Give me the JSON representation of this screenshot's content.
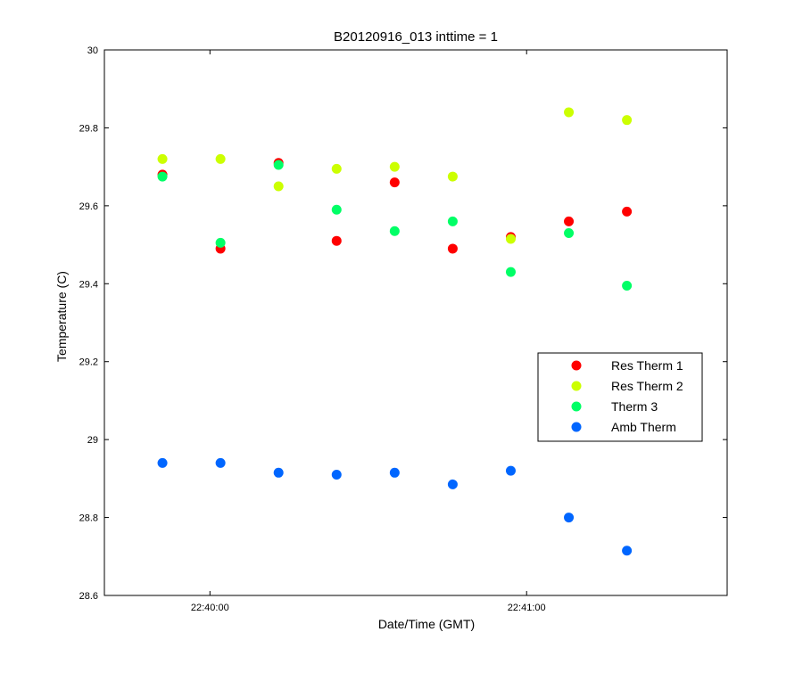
{
  "chart_data": {
    "type": "scatter",
    "title": "B20120916_013 inttime = 1",
    "xlabel": "Date/Time (GMT)",
    "ylabel": "Temperature (C)",
    "x_unit": "time (GMT)",
    "xlim": [
      "22:39:40",
      "22:41:38"
    ],
    "ylim": [
      28.6,
      30
    ],
    "yticks": [
      28.6,
      28.8,
      29,
      29.2,
      29.4,
      29.6,
      29.8,
      30
    ],
    "ytick_labels": [
      "28.6",
      "28.8",
      "29",
      "29.2",
      "29.4",
      "29.6",
      "29.8",
      "30"
    ],
    "xticks": [
      "22:40:00",
      "22:41:00"
    ],
    "xtick_labels": [
      "22:40:00",
      "22:41:00"
    ],
    "x": [
      "22:39:51",
      "22:40:02",
      "22:40:13",
      "22:40:24",
      "22:40:35",
      "22:40:46",
      "22:40:57",
      "22:41:08",
      "22:41:19"
    ],
    "grid": false,
    "legend_position": "right",
    "series": [
      {
        "name": "Res Therm 1",
        "color": "#ff0000",
        "values": [
          29.68,
          29.49,
          29.71,
          29.51,
          29.66,
          29.49,
          29.52,
          29.56,
          29.585
        ]
      },
      {
        "name": "Res Therm 2",
        "color": "#ccff00",
        "values": [
          29.72,
          29.72,
          29.65,
          29.695,
          29.7,
          29.675,
          29.515,
          29.84,
          29.82
        ]
      },
      {
        "name": "Therm 3",
        "color": "#00ff66",
        "values": [
          29.675,
          29.505,
          29.705,
          29.59,
          29.535,
          29.56,
          29.43,
          29.53,
          29.395
        ]
      },
      {
        "name": "Amb Therm",
        "color": "#0066ff",
        "values": [
          28.94,
          28.94,
          28.915,
          28.91,
          28.915,
          28.885,
          28.92,
          28.8,
          28.715
        ]
      }
    ]
  }
}
